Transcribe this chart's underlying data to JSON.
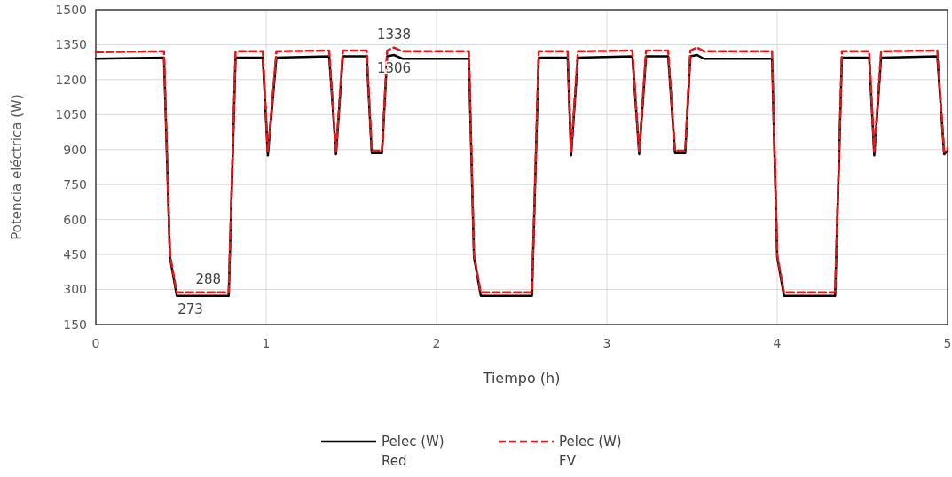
{
  "chart_data": {
    "type": "line",
    "xlabel": "Tiempo (h)",
    "ylabel": "Potencia eléctrica (W)",
    "xlim": [
      0,
      5
    ],
    "xticks": [
      0,
      1,
      2,
      3,
      4,
      5
    ],
    "ylim": [
      150,
      1500
    ],
    "yticks": [
      150,
      300,
      450,
      600,
      750,
      900,
      1050,
      1200,
      1350,
      1500
    ],
    "grid": true,
    "legend": "bottom",
    "marker": "none",
    "x": [
      0,
      0.4,
      0.435,
      0.475,
      0.78,
      0.82,
      0.98,
      1.01,
      1.06,
      1.37,
      1.41,
      1.45,
      1.59,
      1.62,
      1.68,
      1.71,
      1.75,
      1.8,
      2.19,
      2.22,
      2.26,
      2.56,
      2.6,
      2.77,
      2.79,
      2.83,
      3.15,
      3.19,
      3.23,
      3.36,
      3.4,
      3.46,
      3.49,
      3.53,
      3.57,
      3.97,
      4.0,
      4.04,
      4.34,
      4.38,
      4.54,
      4.57,
      4.61,
      4.94,
      4.98,
      5.0
    ],
    "series": [
      {
        "name": "Pelec (W) Red",
        "color": "#000000",
        "line_style": "solid",
        "values": [
          1290,
          1295,
          439,
          273,
          273,
          1295,
          1295,
          875,
          1295,
          1300,
          880,
          1300,
          1300,
          885,
          885,
          1300,
          1306,
          1290,
          1290,
          439,
          273,
          273,
          1295,
          1295,
          875,
          1295,
          1300,
          880,
          1300,
          1300,
          885,
          885,
          1300,
          1306,
          1290,
          1290,
          439,
          273,
          273,
          1295,
          1295,
          875,
          1295,
          1300,
          880,
          895
        ]
      },
      {
        "name": "Pelec (W) FV",
        "color": "#e31a1c",
        "line_style": "dashed",
        "values": [
          1318,
          1322,
          450,
          288,
          288,
          1322,
          1322,
          890,
          1322,
          1325,
          890,
          1325,
          1325,
          895,
          895,
          1325,
          1338,
          1322,
          1322,
          450,
          288,
          288,
          1322,
          1322,
          890,
          1322,
          1325,
          890,
          1325,
          1325,
          895,
          895,
          1325,
          1338,
          1322,
          1322,
          450,
          288,
          288,
          1322,
          1322,
          890,
          1322,
          1325,
          890,
          905
        ]
      }
    ],
    "annotations": [
      {
        "text": "1338",
        "x": 1.75,
        "y": 1338
      },
      {
        "text": "1306",
        "x": 1.75,
        "y": 1306
      },
      {
        "text": "288",
        "x": 0.66,
        "y": 288
      },
      {
        "text": "273",
        "x": 0.555,
        "y": 273
      }
    ]
  }
}
